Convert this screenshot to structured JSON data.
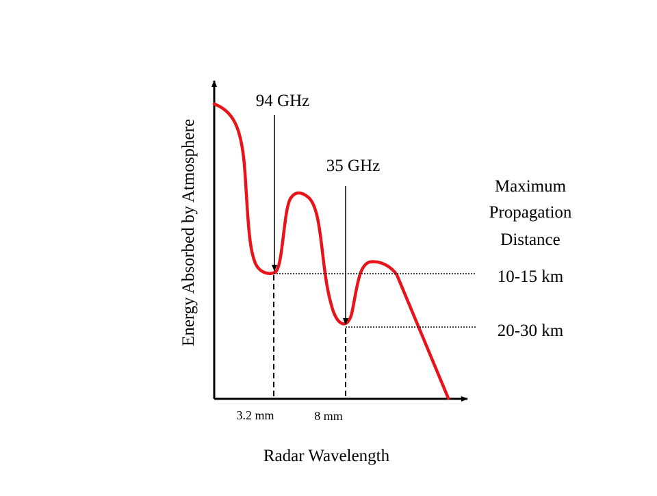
{
  "diagram": {
    "y_axis_label": "Energy Absorbed by Atmosphere",
    "x_axis_label": "Radar Wavelength",
    "annotations": {
      "freq_94": "94 GHz",
      "freq_35": "35 GHz",
      "max_distance_line1": "Maximum",
      "max_distance_line2": "Propagation",
      "max_distance_line3": "Distance",
      "range_94": "10-15 km",
      "range_35": "20-30 km"
    },
    "ticks": {
      "wl_94": "3.2 mm",
      "wl_35": "8 mm"
    },
    "colors": {
      "curve": "#e8141a",
      "axes": "#000000"
    }
  }
}
